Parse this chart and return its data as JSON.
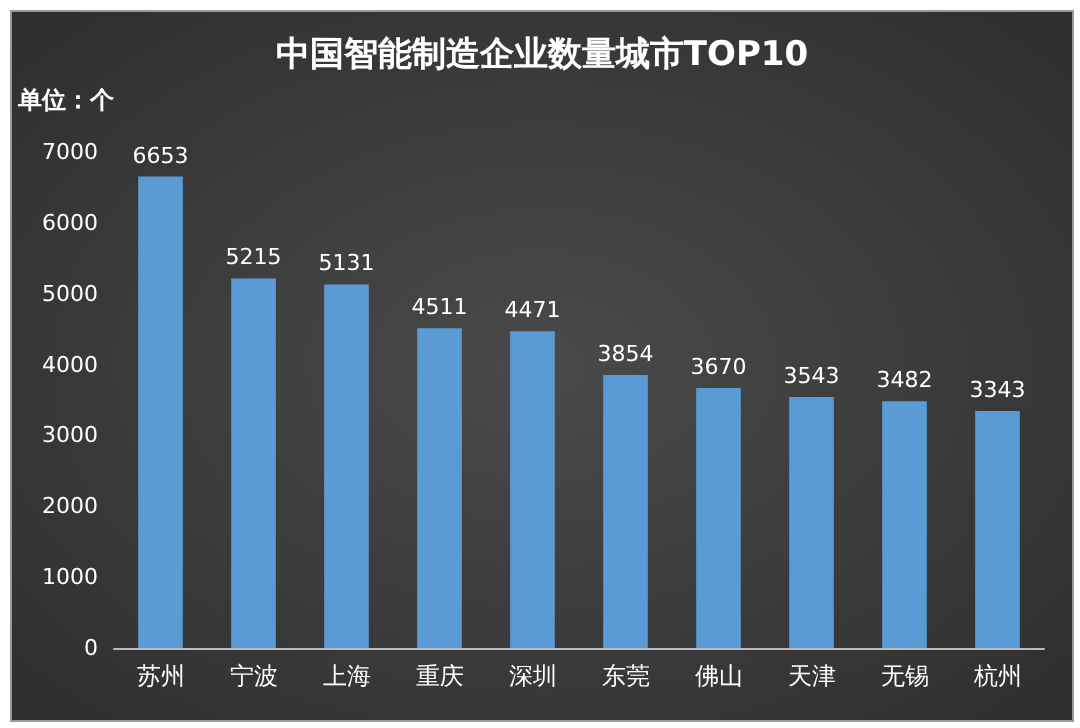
{
  "chart_data": {
    "type": "bar",
    "title": "中国智能制造企业数量城市TOP10",
    "ylabel": "单位：个",
    "categories": [
      "苏州",
      "宁波",
      "上海",
      "重庆",
      "深圳",
      "东莞",
      "佛山",
      "天津",
      "无锡",
      "杭州"
    ],
    "values": [
      6653,
      5215,
      5131,
      4511,
      4471,
      3854,
      3670,
      3543,
      3482,
      3343
    ],
    "color": "#5b9bd5",
    "ylim": [
      0,
      7000
    ],
    "yticks": [
      0,
      1000,
      2000,
      3000,
      4000,
      5000,
      6000,
      7000
    ],
    "grid": false,
    "data_labels": true
  }
}
